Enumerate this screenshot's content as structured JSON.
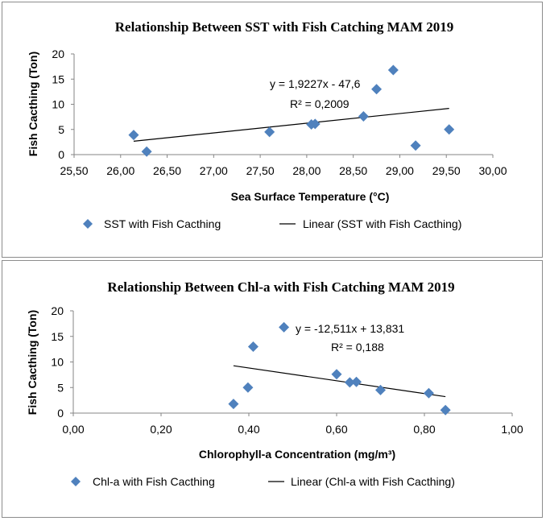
{
  "chart_data": [
    {
      "type": "scatter",
      "title": "Relationship Between SST with Fish Catching MAM 2019",
      "xlabel": "Sea Surface Temperature (°C)",
      "ylabel": "Fish Cacthing (Ton)",
      "xlim": [
        25.5,
        30.0
      ],
      "ylim": [
        0,
        20
      ],
      "x_ticks": [
        "25,50",
        "26,00",
        "26,50",
        "27,00",
        "27,50",
        "28,00",
        "28,50",
        "29,00",
        "29,50",
        "30,00"
      ],
      "y_ticks": [
        "0",
        "5",
        "10",
        "15",
        "20"
      ],
      "grid": false,
      "series": [
        {
          "name": "SST with Fish Cacthing",
          "color": "#4f81bd",
          "marker": "diamond",
          "points": [
            {
              "x": 26.14,
              "y": 3.9
            },
            {
              "x": 26.28,
              "y": 0.6
            },
            {
              "x": 27.6,
              "y": 4.5
            },
            {
              "x": 28.05,
              "y": 6.0
            },
            {
              "x": 28.09,
              "y": 6.1
            },
            {
              "x": 28.61,
              "y": 7.6
            },
            {
              "x": 28.75,
              "y": 13.0
            },
            {
              "x": 28.93,
              "y": 16.8
            },
            {
              "x": 29.17,
              "y": 1.8
            },
            {
              "x": 29.53,
              "y": 5.0
            }
          ]
        }
      ],
      "trendline": {
        "name": "Linear (SST with Fish Cacthing)",
        "slope": 1.9227,
        "intercept": -47.6,
        "x_range": [
          26.14,
          29.53
        ],
        "equation_label": "y = 1,9227x - 47,6",
        "r2_label": "R² = 0,2009"
      },
      "legend": "bottom"
    },
    {
      "type": "scatter",
      "title": "Relationship Between Chl-a with Fish Catching MAM 2019",
      "xlabel": "Chlorophyll-a Concentration (mg/m³)",
      "ylabel": "Fish Cacthing (Ton)",
      "xlim": [
        0.0,
        1.0
      ],
      "ylim": [
        0,
        20
      ],
      "x_ticks": [
        "0,00",
        "0,20",
        "0,40",
        "0,60",
        "0,80",
        "1,00"
      ],
      "y_ticks": [
        "0",
        "5",
        "10",
        "15",
        "20"
      ],
      "grid": false,
      "series": [
        {
          "name": "Chl-a with Fish Cacthing",
          "color": "#4f81bd",
          "marker": "diamond",
          "points": [
            {
              "x": 0.365,
              "y": 1.8
            },
            {
              "x": 0.398,
              "y": 5.0
            },
            {
              "x": 0.41,
              "y": 13.0
            },
            {
              "x": 0.48,
              "y": 16.8
            },
            {
              "x": 0.6,
              "y": 7.6
            },
            {
              "x": 0.63,
              "y": 6.0
            },
            {
              "x": 0.645,
              "y": 6.1
            },
            {
              "x": 0.7,
              "y": 4.5
            },
            {
              "x": 0.81,
              "y": 3.9
            },
            {
              "x": 0.848,
              "y": 0.6
            }
          ]
        }
      ],
      "trendline": {
        "name": "Linear (Chl-a with Fish Cacthing)",
        "slope": -12.511,
        "intercept": 13.831,
        "x_range": [
          0.365,
          0.848
        ],
        "equation_label": "y = -12,511x + 13,831",
        "r2_label": "R² = 0,188"
      },
      "legend": "bottom"
    }
  ]
}
